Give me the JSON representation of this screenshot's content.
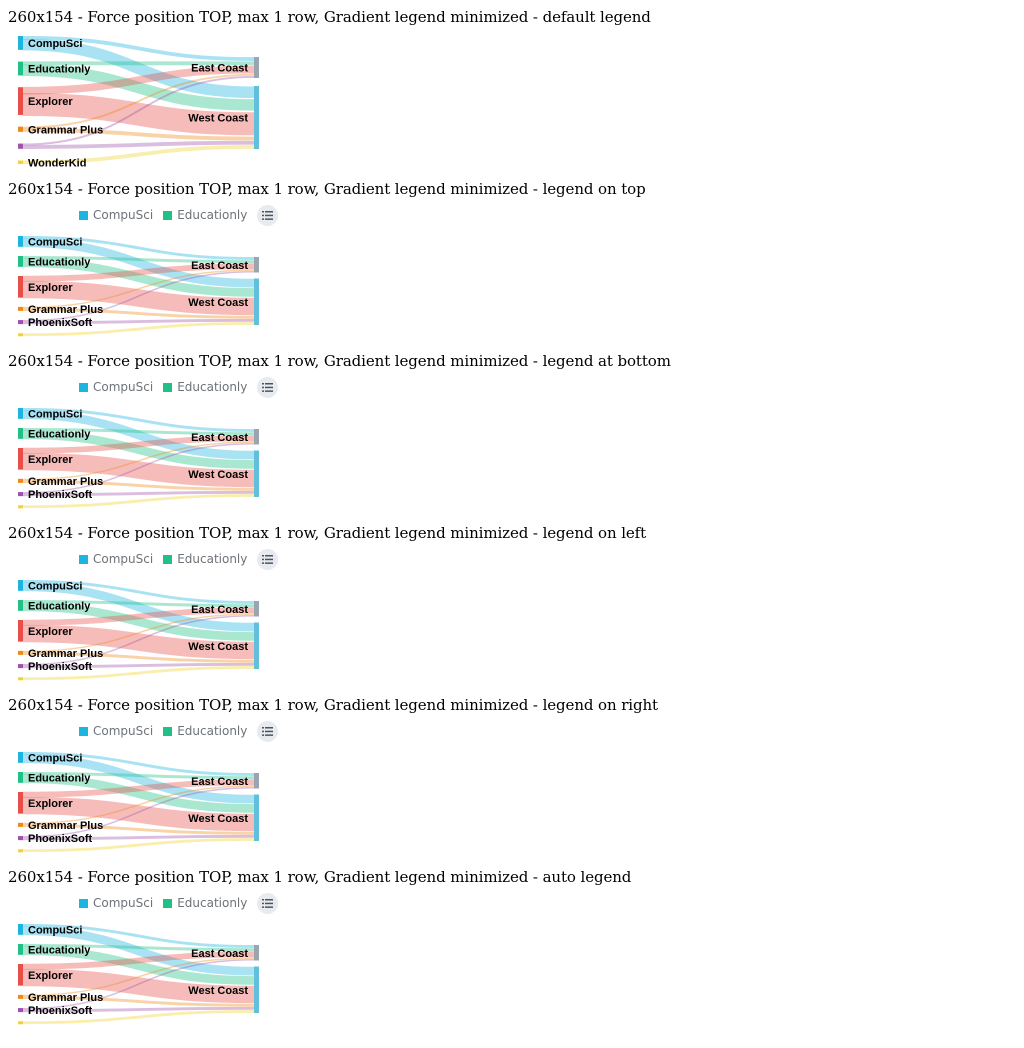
{
  "colors": {
    "source": [
      "#1db4e0",
      "#20c087",
      "#e84f48",
      "#ee8a1b",
      "#a052ac",
      "#f3d12e"
    ],
    "target": [
      "#9aa5b1",
      "#62c0dc"
    ]
  },
  "legend": {
    "items": [
      {
        "label": "CompuSci",
        "color": "#1db4e0"
      },
      {
        "label": "Educationly",
        "color": "#20c087"
      }
    ],
    "more_icon": "list-icon"
  },
  "sections": [
    {
      "title": "260x154 - Force position TOP, max 1 row, Gradient legend minimized - default legend",
      "legend": false,
      "source_labels": [
        "CompuSci",
        "Educationly",
        "Explorer",
        "Grammar Plus",
        "",
        "WonderKid"
      ]
    },
    {
      "title": "260x154 - Force position TOP, max 1 row, Gradient legend minimized - legend on top",
      "legend": true,
      "source_labels": [
        "CompuSci",
        "Educationly",
        "Explorer",
        "Grammar Plus",
        "PhoenixSoft",
        ""
      ]
    },
    {
      "title": "260x154 - Force position TOP, max 1 row, Gradient legend minimized - legend at bottom",
      "legend": true,
      "source_labels": [
        "CompuSci",
        "Educationly",
        "Explorer",
        "Grammar Plus",
        "PhoenixSoft",
        ""
      ]
    },
    {
      "title": "260x154 - Force position TOP, max 1 row, Gradient legend minimized - legend on left",
      "legend": true,
      "source_labels": [
        "CompuSci",
        "Educationly",
        "Explorer",
        "Grammar Plus",
        "PhoenixSoft",
        ""
      ]
    },
    {
      "title": "260x154 - Force position TOP, max 1 row, Gradient legend minimized - legend on right",
      "legend": true,
      "source_labels": [
        "CompuSci",
        "Educationly",
        "Explorer",
        "Grammar Plus",
        "PhoenixSoft",
        ""
      ]
    },
    {
      "title": "260x154 - Force position TOP, max 1 row, Gradient legend minimized - auto legend",
      "legend": true,
      "source_labels": [
        "CompuSci",
        "Educationly",
        "Explorer",
        "Grammar Plus",
        "PhoenixSoft",
        ""
      ]
    }
  ],
  "chart_data": {
    "type": "sankey",
    "sources": [
      "CompuSci",
      "Educationly",
      "Explorer",
      "Grammar Plus",
      "PhoenixSoft",
      "WonderKid"
    ],
    "targets": [
      "East Coast",
      "West Coast"
    ],
    "links": [
      {
        "source": "CompuSci",
        "target": "East Coast",
        "value": 1
      },
      {
        "source": "CompuSci",
        "target": "West Coast",
        "value": 3
      },
      {
        "source": "Educationly",
        "target": "East Coast",
        "value": 1
      },
      {
        "source": "Educationly",
        "target": "West Coast",
        "value": 3
      },
      {
        "source": "Explorer",
        "target": "East Coast",
        "value": 2
      },
      {
        "source": "Explorer",
        "target": "West Coast",
        "value": 6
      },
      {
        "source": "Grammar Plus",
        "target": "East Coast",
        "value": 0.5
      },
      {
        "source": "Grammar Plus",
        "target": "West Coast",
        "value": 1
      },
      {
        "source": "PhoenixSoft",
        "target": "East Coast",
        "value": 0.5
      },
      {
        "source": "PhoenixSoft",
        "target": "West Coast",
        "value": 1
      },
      {
        "source": "WonderKid",
        "target": "West Coast",
        "value": 1
      }
    ]
  }
}
